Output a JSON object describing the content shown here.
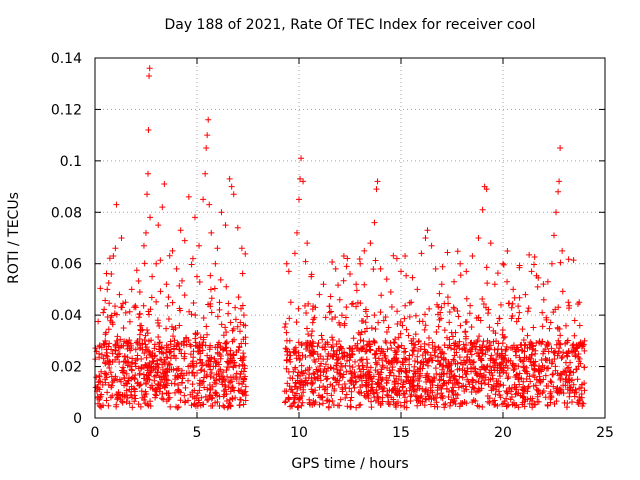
{
  "chart_data": {
    "type": "scatter",
    "title": "Day 188 of 2021, Rate Of TEC Index for receiver cool",
    "xlabel": "GPS time / hours",
    "ylabel": "ROTI / TECUs",
    "xlim": [
      0,
      25
    ],
    "ylim": [
      0,
      0.14
    ],
    "xticks": [
      0,
      5,
      10,
      15,
      20,
      25
    ],
    "xtick_labels": [
      "0",
      "5",
      "10",
      "15",
      "20",
      "25"
    ],
    "yticks": [
      0,
      0.02,
      0.04,
      0.06,
      0.08,
      0.1,
      0.12,
      0.14
    ],
    "ytick_labels": [
      "0",
      "0.02",
      "0.04",
      "0.06",
      "0.08",
      "0.1",
      "0.12",
      "0.14"
    ],
    "grid": true,
    "marker": "+",
    "color": "#ff0000",
    "gap_hours": [
      7.4,
      9.3
    ],
    "series": [
      {
        "name": "ROTI",
        "points": [
          [
            0.1,
            0.012
          ],
          [
            0.2,
            0.025
          ],
          [
            0.3,
            0.018
          ],
          [
            0.4,
            0.041
          ],
          [
            0.5,
            0.03
          ],
          [
            0.6,
            0.05
          ],
          [
            0.7,
            0.022
          ],
          [
            0.8,
            0.056
          ],
          [
            0.9,
            0.063
          ],
          [
            1.0,
            0.066
          ],
          [
            1.05,
            0.083
          ],
          [
            1.2,
            0.048
          ],
          [
            1.3,
            0.07
          ],
          [
            1.4,
            0.035
          ],
          [
            1.5,
            0.045
          ],
          [
            1.6,
            0.028
          ],
          [
            1.8,
            0.05
          ],
          [
            2.0,
            0.043
          ],
          [
            2.2,
            0.049
          ],
          [
            2.4,
            0.067
          ],
          [
            2.5,
            0.072
          ],
          [
            2.55,
            0.087
          ],
          [
            2.6,
            0.095
          ],
          [
            2.62,
            0.112
          ],
          [
            2.65,
            0.133
          ],
          [
            2.68,
            0.136
          ],
          [
            2.7,
            0.078
          ],
          [
            2.8,
            0.055
          ],
          [
            3.0,
            0.06
          ],
          [
            3.1,
            0.075
          ],
          [
            3.3,
            0.082
          ],
          [
            3.4,
            0.091
          ],
          [
            3.5,
            0.052
          ],
          [
            3.6,
            0.047
          ],
          [
            3.8,
            0.065
          ],
          [
            4.0,
            0.058
          ],
          [
            4.2,
            0.073
          ],
          [
            4.4,
            0.069
          ],
          [
            4.6,
            0.086
          ],
          [
            4.8,
            0.062
          ],
          [
            4.9,
            0.078
          ],
          [
            5.0,
            0.055
          ],
          [
            5.1,
            0.067
          ],
          [
            5.3,
            0.085
          ],
          [
            5.4,
            0.095
          ],
          [
            5.45,
            0.105
          ],
          [
            5.5,
            0.11
          ],
          [
            5.55,
            0.116
          ],
          [
            5.6,
            0.083
          ],
          [
            5.7,
            0.072
          ],
          [
            5.9,
            0.06
          ],
          [
            6.0,
            0.066
          ],
          [
            6.2,
            0.08
          ],
          [
            6.4,
            0.075
          ],
          [
            6.6,
            0.093
          ],
          [
            6.7,
            0.09
          ],
          [
            6.8,
            0.087
          ],
          [
            7.0,
            0.074
          ],
          [
            7.2,
            0.066
          ],
          [
            7.3,
            0.04
          ],
          [
            9.4,
            0.06
          ],
          [
            9.5,
            0.057
          ],
          [
            9.6,
            0.045
          ],
          [
            9.8,
            0.064
          ],
          [
            9.9,
            0.072
          ],
          [
            10.0,
            0.085
          ],
          [
            10.05,
            0.093
          ],
          [
            10.1,
            0.101
          ],
          [
            10.2,
            0.092
          ],
          [
            10.4,
            0.068
          ],
          [
            10.6,
            0.055
          ],
          [
            10.8,
            0.043
          ],
          [
            11.0,
            0.048
          ],
          [
            11.2,
            0.052
          ],
          [
            11.5,
            0.041
          ],
          [
            11.8,
            0.058
          ],
          [
            12.0,
            0.046
          ],
          [
            12.2,
            0.063
          ],
          [
            12.5,
            0.056
          ],
          [
            12.8,
            0.052
          ],
          [
            13.0,
            0.06
          ],
          [
            13.2,
            0.065
          ],
          [
            13.5,
            0.068
          ],
          [
            13.7,
            0.076
          ],
          [
            13.8,
            0.089
          ],
          [
            13.85,
            0.092
          ],
          [
            14.0,
            0.058
          ],
          [
            14.3,
            0.054
          ],
          [
            14.5,
            0.049
          ],
          [
            14.8,
            0.062
          ],
          [
            15.0,
            0.057
          ],
          [
            15.2,
            0.063
          ],
          [
            15.5,
            0.045
          ],
          [
            15.8,
            0.05
          ],
          [
            16.0,
            0.064
          ],
          [
            16.2,
            0.07
          ],
          [
            16.3,
            0.073
          ],
          [
            16.5,
            0.067
          ],
          [
            16.7,
            0.058
          ],
          [
            17.0,
            0.052
          ],
          [
            17.3,
            0.047
          ],
          [
            17.6,
            0.053
          ],
          [
            17.9,
            0.06
          ],
          [
            18.2,
            0.057
          ],
          [
            18.5,
            0.063
          ],
          [
            18.8,
            0.07
          ],
          [
            19.0,
            0.081
          ],
          [
            19.1,
            0.09
          ],
          [
            19.2,
            0.089
          ],
          [
            19.4,
            0.068
          ],
          [
            19.6,
            0.052
          ],
          [
            19.9,
            0.044
          ],
          [
            20.0,
            0.06
          ],
          [
            20.2,
            0.053
          ],
          [
            20.5,
            0.05
          ],
          [
            20.8,
            0.041
          ],
          [
            21.1,
            0.048
          ],
          [
            21.4,
            0.057
          ],
          [
            21.7,
            0.051
          ],
          [
            22.0,
            0.046
          ],
          [
            22.2,
            0.053
          ],
          [
            22.4,
            0.06
          ],
          [
            22.5,
            0.071
          ],
          [
            22.6,
            0.08
          ],
          [
            22.7,
            0.088
          ],
          [
            22.75,
            0.092
          ],
          [
            22.8,
            0.105
          ],
          [
            22.9,
            0.065
          ],
          [
            23.2,
            0.045
          ],
          [
            23.5,
            0.032
          ],
          [
            23.8,
            0.029
          ],
          [
            24.0,
            0.03
          ]
        ]
      }
    ]
  }
}
